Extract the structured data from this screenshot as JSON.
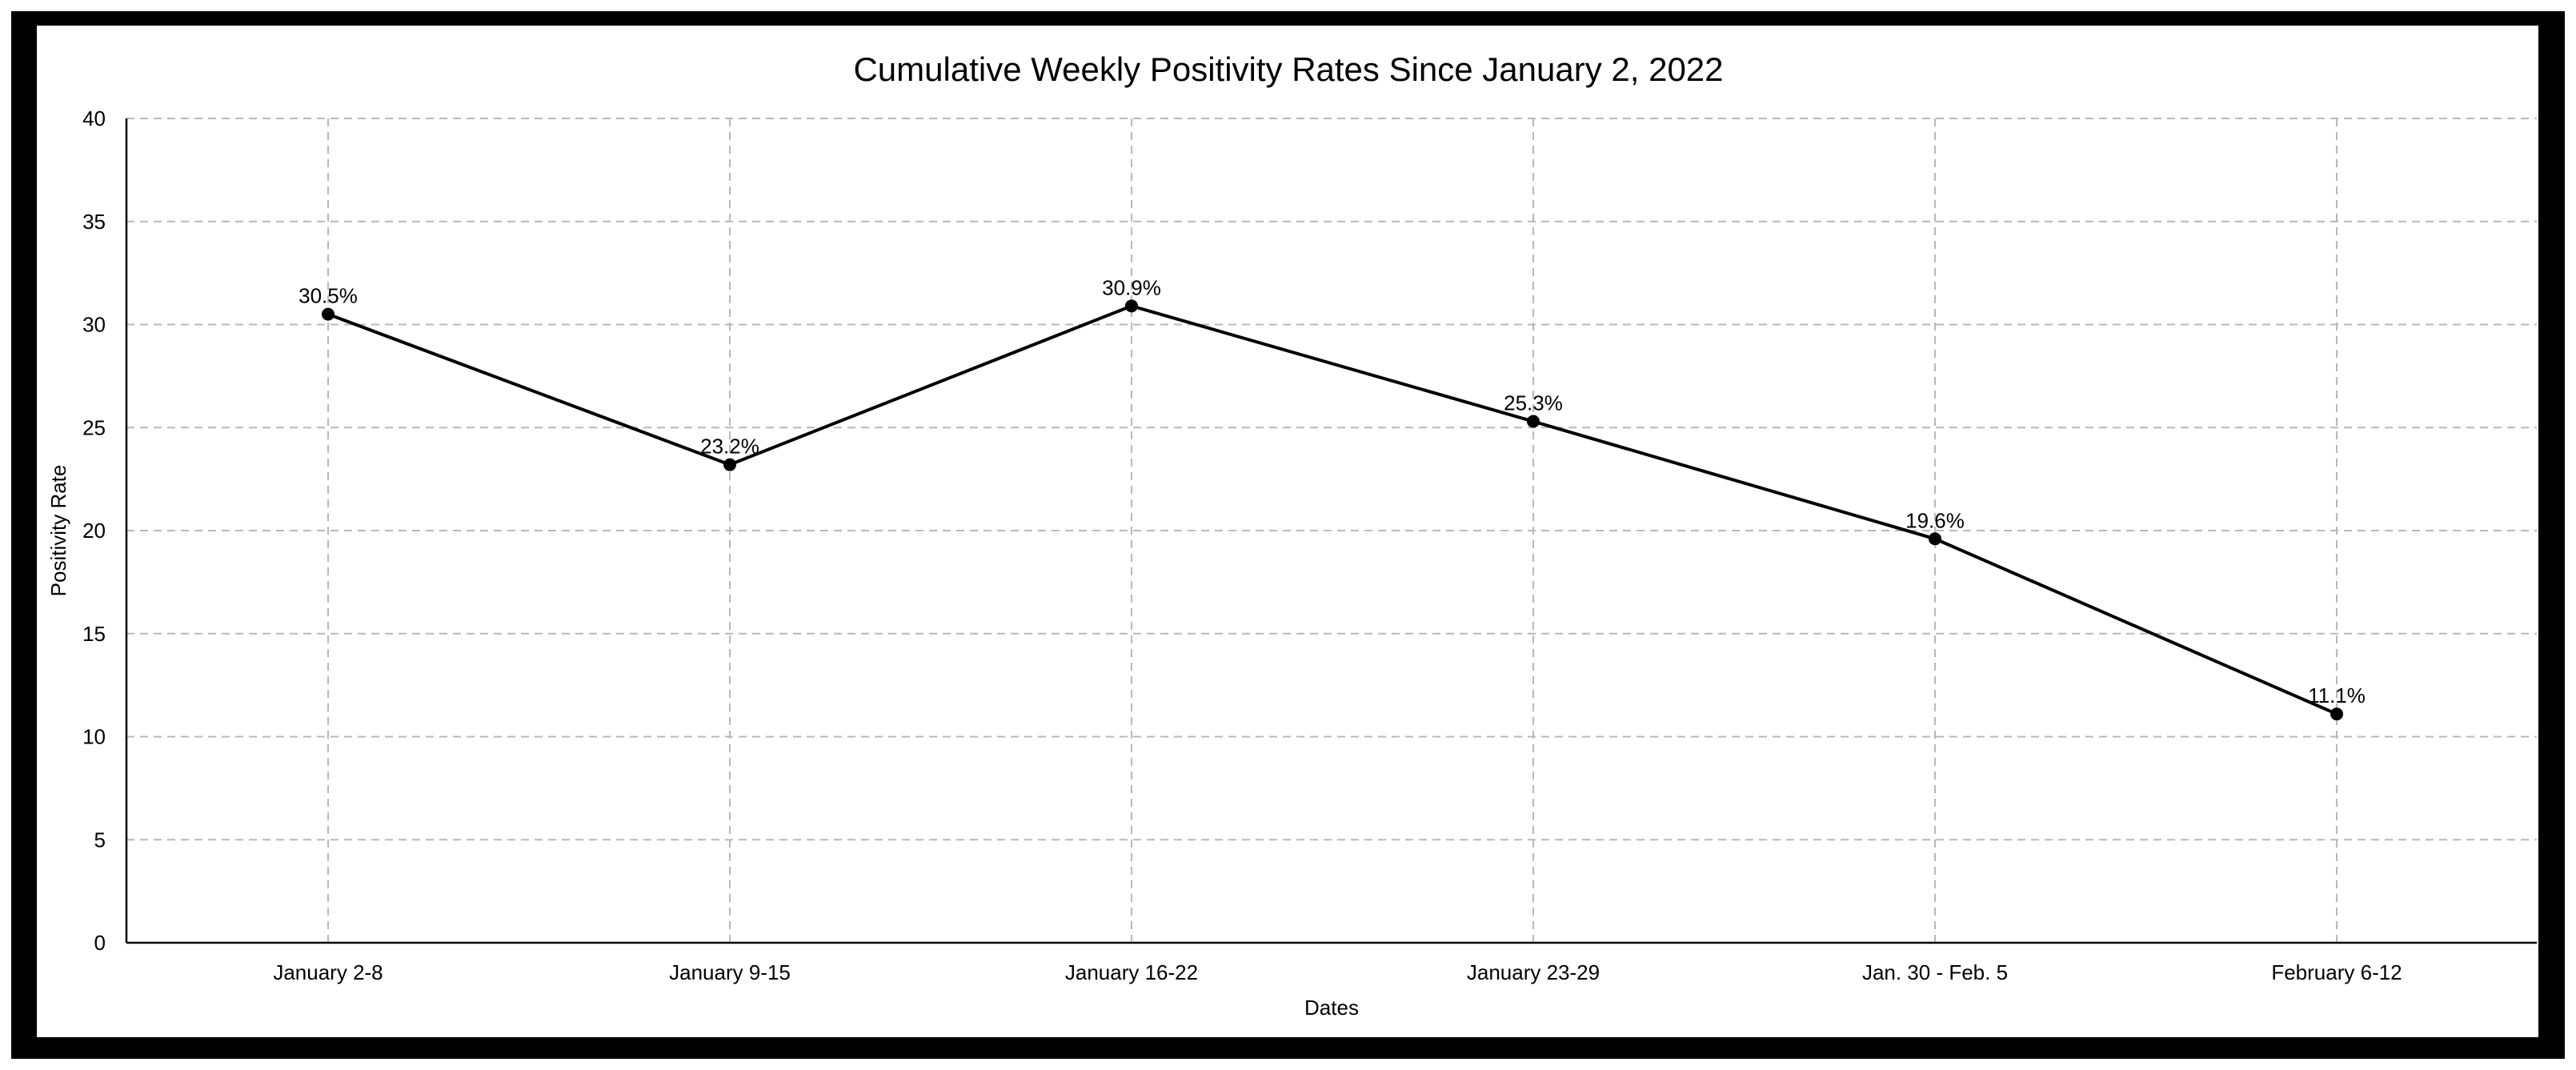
{
  "chart_data": {
    "type": "line",
    "title": "Cumulative Weekly Positivity Rates Since January 2, 2022",
    "xlabel": "Dates",
    "ylabel": "Positivity Rate",
    "categories": [
      "January 2-8",
      "January 9-15",
      "January 16-22",
      "January 23-29",
      "Jan. 30 - Feb. 5",
      "February 6-12"
    ],
    "values": [
      30.5,
      23.2,
      30.9,
      25.3,
      19.6,
      11.1
    ],
    "data_labels": [
      "30.5%",
      "23.2%",
      "30.9%",
      "25.3%",
      "19.6%",
      "11.1%"
    ],
    "ylim": [
      0,
      40
    ],
    "yticks": [
      0,
      5,
      10,
      15,
      20,
      25,
      30,
      35,
      40
    ],
    "grid": true,
    "legend": "none"
  },
  "colors": {
    "line": "#000000",
    "grid": "#b8b8b8",
    "frame": "#000000",
    "background": "#ffffff"
  }
}
